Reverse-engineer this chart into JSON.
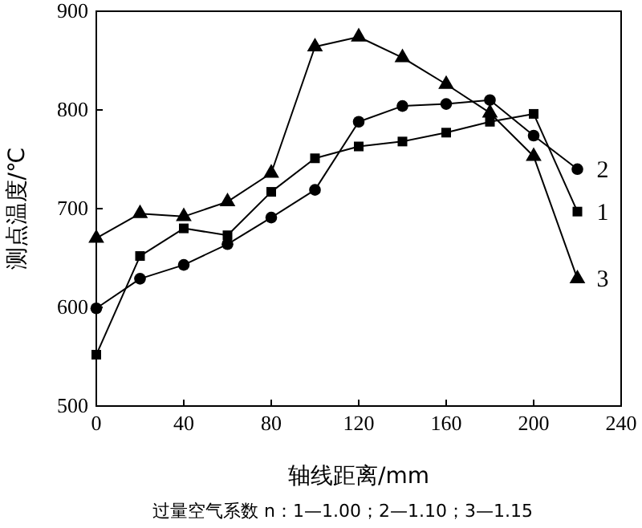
{
  "chart_data": {
    "type": "line",
    "xlabel": "轴线距离/mm",
    "ylabel": "测点温度/℃",
    "annotations": [
      "过量空气系数 n：1—1.00；2—1.10；3—1.15"
    ],
    "x": [
      0,
      20,
      40,
      60,
      80,
      100,
      120,
      140,
      160,
      180,
      200,
      220
    ],
    "xlim": [
      0,
      240
    ],
    "xticks": [
      0,
      40,
      80,
      120,
      160,
      200,
      240
    ],
    "ylim": [
      500,
      900
    ],
    "yticks": [
      500,
      600,
      700,
      800,
      900
    ],
    "grid": false,
    "series": [
      {
        "name": "1",
        "color": "#000000",
        "marker": "square",
        "values": [
          552,
          652,
          680,
          673,
          717,
          751,
          763,
          768,
          777,
          788,
          796,
          697
        ]
      },
      {
        "name": "2",
        "color": "#000000",
        "marker": "circle",
        "values": [
          599,
          629,
          643,
          664,
          691,
          719,
          788,
          804,
          806,
          810,
          774,
          740
        ]
      },
      {
        "name": "3",
        "color": "#000000",
        "marker": "triangle",
        "values": [
          670,
          695,
          692,
          707,
          736,
          864,
          874,
          853,
          826,
          797,
          753,
          629
        ]
      }
    ]
  }
}
